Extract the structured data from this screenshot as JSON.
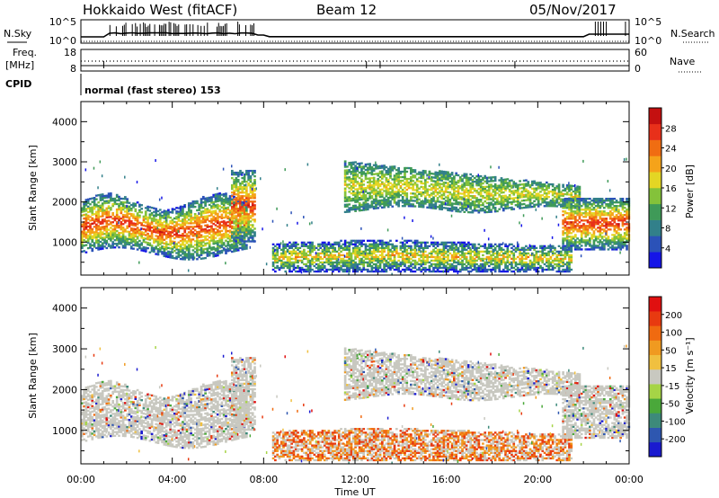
{
  "header": {
    "radar": "Hokkaido West (fitACF)",
    "beam": "Beam 12",
    "date": "05/Nov/2017"
  },
  "status_panels": {
    "nsky_label": "N.Sky",
    "nsearch_label": "N.Search",
    "freq_label": "Freq.",
    "freq_unit": "[MHz]",
    "nave_label": "Nave",
    "cpid_label": "CPID",
    "cpid_value": "normal (fast stereo) 153",
    "noise_ticks": [
      "10^5",
      "10^0"
    ],
    "freq_ticks": [
      "18",
      "8"
    ],
    "nave_ticks": [
      "60",
      "0"
    ]
  },
  "chart_data": [
    {
      "type": "heatmap",
      "panel": "power",
      "ylabel": "Slant Range [km]",
      "xlabel": "",
      "ylim": [
        180,
        4500
      ],
      "yticks": [
        1000,
        2000,
        3000,
        4000
      ],
      "xlim_hours": [
        0,
        24
      ],
      "colorbar": {
        "title": "Power [dB]",
        "ticks": [
          4,
          8,
          12,
          16,
          20,
          24,
          28
        ],
        "range": [
          0,
          32
        ],
        "colors": [
          "#1515e8",
          "#2b52b8",
          "#32808a",
          "#3f9a58",
          "#84c23a",
          "#e4d624",
          "#f5a31a",
          "#f06d12",
          "#e8301a",
          "#c41010"
        ]
      }
    },
    {
      "type": "heatmap",
      "panel": "velocity",
      "ylabel": "Slant Range [km]",
      "xlabel": "Time UT",
      "ylim": [
        180,
        4500
      ],
      "yticks": [
        1000,
        2000,
        3000,
        4000
      ],
      "xlim_hours": [
        0,
        24
      ],
      "xticks": [
        "00:00",
        "04:00",
        "08:00",
        "12:00",
        "16:00",
        "20:00",
        "00:00"
      ],
      "colorbar": {
        "title": "Velocity [m s⁻¹]",
        "ticks": [
          "200",
          "100",
          "50",
          "15",
          "-15",
          "-50",
          "-100",
          "-200"
        ],
        "colors": [
          "#1a1ad0",
          "#2e57b0",
          "#3d8a7a",
          "#4aa83a",
          "#a6d446",
          "#c8c8c0",
          "#f0c040",
          "#f09a20",
          "#f06a10",
          "#e83a10",
          "#e01010"
        ]
      }
    }
  ]
}
